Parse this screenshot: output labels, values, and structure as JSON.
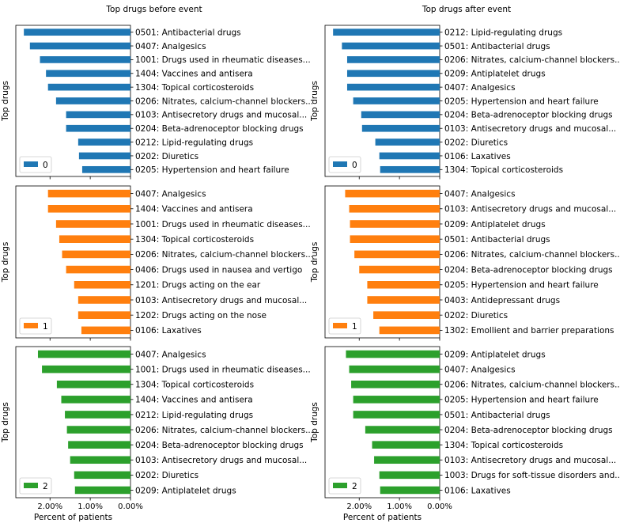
{
  "figure": {
    "titles": [
      "Top drugs before event",
      "Top drugs after event"
    ],
    "ylabel": "Top drugs",
    "xlabel": "Percent of patients",
    "x_ticks": [
      2.0,
      1.0,
      0.0
    ],
    "x_tick_labels": [
      "2.00%",
      "1.00%",
      "0.00%"
    ]
  },
  "chart_data": [
    {
      "type": "bar",
      "orientation": "horizontal",
      "panel": "before",
      "group": "0",
      "color": "#1f77b4",
      "xlim": [
        2.85,
        0
      ],
      "legend": "0",
      "legend_position": "lower left",
      "categories": [
        "0501: Antibacterial drugs",
        "0407: Analgesics",
        "1001: Drugs used in rheumatic diseases...",
        "1404: Vaccines and antisera",
        "1304: Topical corticosteroids",
        "0206: Nitrates, calcium-channel blockers...",
        "0103: Antisecretory drugs and mucosal...",
        "0204: Beta-adrenoceptor blocking drugs",
        "0212: Lipid-regulating drugs",
        "0202: Diuretics",
        "0205: Hypertension and heart failure"
      ],
      "values": [
        2.65,
        2.5,
        2.25,
        2.1,
        2.05,
        1.85,
        1.6,
        1.6,
        1.3,
        1.28,
        1.2
      ]
    },
    {
      "type": "bar",
      "orientation": "horizontal",
      "panel": "after",
      "group": "0",
      "color": "#1f77b4",
      "xlim": [
        2.85,
        0
      ],
      "legend": "0",
      "legend_position": "lower left",
      "categories": [
        "0212: Lipid-regulating drugs",
        "0501: Antibacterial drugs",
        "0206: Nitrates, calcium-channel blockers...",
        "0209: Antiplatelet drugs",
        "0407: Analgesics",
        "0205: Hypertension and heart failure",
        "0204: Beta-adrenoceptor blocking drugs",
        "0103: Antisecretory drugs and mucosal...",
        "0202: Diuretics",
        "0106: Laxatives",
        "1304: Topical corticosteroids"
      ],
      "values": [
        2.65,
        2.43,
        2.3,
        2.3,
        2.3,
        2.15,
        1.95,
        1.93,
        1.6,
        1.5,
        1.48
      ]
    },
    {
      "type": "bar",
      "orientation": "horizontal",
      "panel": "before",
      "group": "1",
      "color": "#ff7f0e",
      "xlim": [
        2.85,
        0
      ],
      "legend": "1",
      "legend_position": "lower left",
      "categories": [
        "0407: Analgesics",
        "1404: Vaccines and antisera",
        "1001: Drugs used in rheumatic diseases...",
        "1304: Topical corticosteroids",
        "0206: Nitrates, calcium-channel blockers...",
        "0406: Drugs used in nausea and vertigo",
        "1201: Drugs acting on the ear",
        "0103: Antisecretory drugs and mucosal...",
        "1202: Drugs acting on the nose",
        "0106: Laxatives"
      ],
      "values": [
        2.05,
        2.05,
        1.85,
        1.77,
        1.7,
        1.6,
        1.4,
        1.3,
        1.3,
        1.22
      ]
    },
    {
      "type": "bar",
      "orientation": "horizontal",
      "panel": "after",
      "group": "1",
      "color": "#ff7f0e",
      "xlim": [
        2.85,
        0
      ],
      "legend": "1",
      "legend_position": "lower left",
      "categories": [
        "0407: Analgesics",
        "0103: Antisecretory drugs and mucosal...",
        "0209: Antiplatelet drugs",
        "0501: Antibacterial drugs",
        "0206: Nitrates, calcium-channel blockers...",
        "0204: Beta-adrenoceptor blocking drugs",
        "0205: Hypertension and heart failure",
        "0403: Antidepressant drugs",
        "0202: Diuretics",
        "1302: Emollient and barrier preparations"
      ],
      "values": [
        2.35,
        2.25,
        2.23,
        2.23,
        2.12,
        2.0,
        1.8,
        1.8,
        1.65,
        1.5
      ]
    },
    {
      "type": "bar",
      "orientation": "horizontal",
      "panel": "before",
      "group": "2",
      "color": "#2ca02c",
      "xlim": [
        2.85,
        0
      ],
      "legend": "2",
      "legend_position": "lower left",
      "categories": [
        "0407: Analgesics",
        "1001: Drugs used in rheumatic diseases...",
        "1304: Topical corticosteroids",
        "1404: Vaccines and antisera",
        "0212: Lipid-regulating drugs",
        "0206: Nitrates, calcium-channel blockers...",
        "0204: Beta-adrenoceptor blocking drugs",
        "0103: Antisecretory drugs and mucosal...",
        "0202: Diuretics",
        "0209: Antiplatelet drugs"
      ],
      "values": [
        2.3,
        2.2,
        1.83,
        1.72,
        1.63,
        1.58,
        1.55,
        1.5,
        1.4,
        1.38
      ]
    },
    {
      "type": "bar",
      "orientation": "horizontal",
      "panel": "after",
      "group": "2",
      "color": "#2ca02c",
      "xlim": [
        2.85,
        0
      ],
      "legend": "2",
      "legend_position": "lower left",
      "categories": [
        "0209: Antiplatelet drugs",
        "0407: Analgesics",
        "0206: Nitrates, calcium-channel blockers...",
        "0205: Hypertension and heart failure",
        "0501: Antibacterial drugs",
        "0204: Beta-adrenoceptor blocking drugs",
        "1304: Topical corticosteroids",
        "0103: Antisecretory drugs and mucosal...",
        "1003: Drugs for soft-tissue disorders and...",
        "0106: Laxatives"
      ],
      "values": [
        2.33,
        2.25,
        2.2,
        2.15,
        2.15,
        1.85,
        1.68,
        1.63,
        1.5,
        1.48
      ]
    }
  ]
}
